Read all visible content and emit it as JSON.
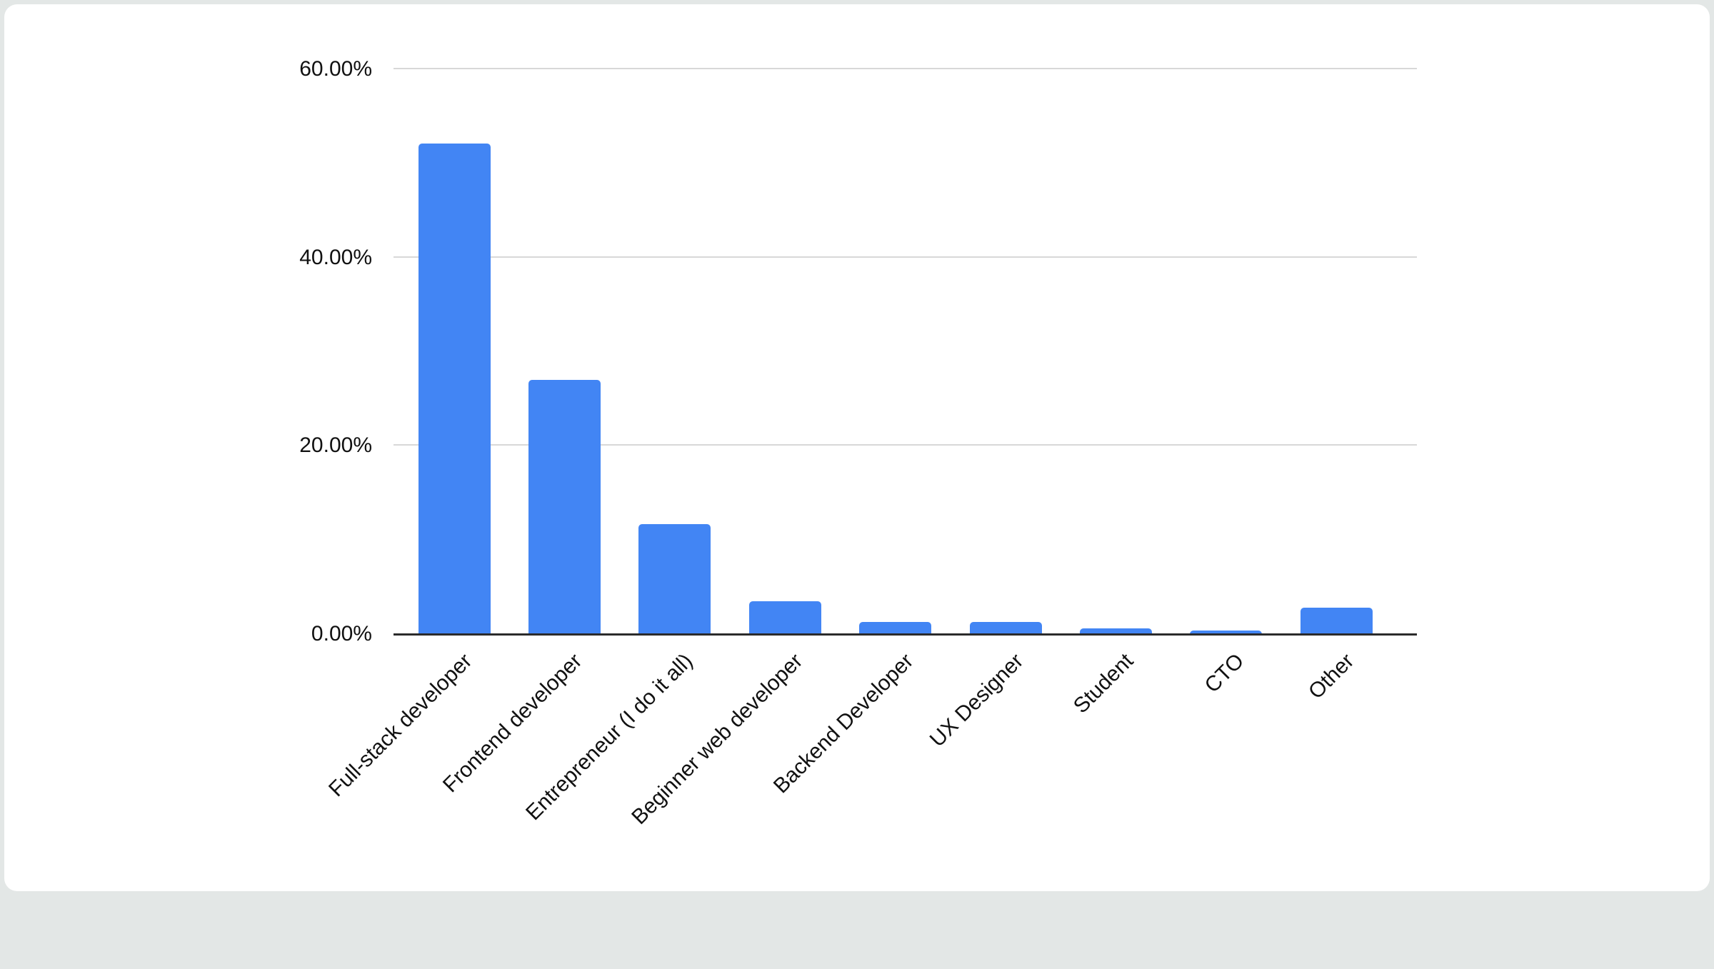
{
  "chart_data": {
    "type": "bar",
    "title": "",
    "xlabel": "",
    "ylabel": "",
    "categories": [
      "Full-stack developer",
      "Frontend developer",
      "Entrepreneur (I do it all)",
      "Beginner web developer",
      "Backend Developer",
      "UX Designer",
      "Student",
      "CTO",
      "Other"
    ],
    "values": [
      52.0,
      26.9,
      11.6,
      3.4,
      1.2,
      1.2,
      0.5,
      0.3,
      2.7
    ],
    "unit": "%",
    "ylim": [
      0,
      60
    ],
    "y_ticks": [
      "60.00%",
      "40.00%",
      "20.00%",
      "0.00%"
    ],
    "y_tick_values": [
      60,
      40,
      20,
      0
    ],
    "grid": true,
    "legend_position": "none",
    "x_label_rotation_deg": -45,
    "colors": {
      "bar": "#4285f4",
      "gridline": "#d8d8d8",
      "axis": "#2b2b2b",
      "text": "#111111",
      "card_background": "#ffffff",
      "page_background": "#e3e7e6"
    }
  }
}
